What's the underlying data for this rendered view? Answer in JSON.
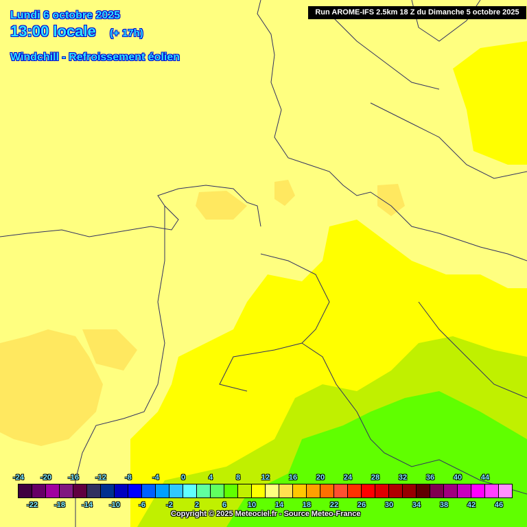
{
  "header": {
    "date": "Lundi 6 octobre 2025",
    "time": "13:00 locale",
    "lead": "(+ 17h)",
    "parameter": "Windchill - Refroissement éolien",
    "run": "Run AROME-IFS 2.5km 18 Z du Dimanche 5 octobre 2025"
  },
  "legend": {
    "top_labels": [
      "-24",
      "-20",
      "-16",
      "-12",
      "-8",
      "-4",
      "0",
      "4",
      "8",
      "12",
      "16",
      "20",
      "24",
      "28",
      "32",
      "36",
      "40",
      "44"
    ],
    "bottom_labels": [
      "-22",
      "-18",
      "-14",
      "-10",
      "-6",
      "-2",
      "2",
      "6",
      "10",
      "14",
      "18",
      "22",
      "26",
      "30",
      "34",
      "38",
      "42",
      "46"
    ],
    "colors": [
      "#3f0040",
      "#660066",
      "#a000a0",
      "#801880",
      "#600040",
      "#303060",
      "#003090",
      "#0000c0",
      "#0000ff",
      "#0060ff",
      "#00a0ff",
      "#30c8ff",
      "#60ffff",
      "#60ffa0",
      "#60ff60",
      "#60ff00",
      "#c0f000",
      "#ffff00",
      "#ffff80",
      "#ffe050",
      "#ffc800",
      "#ffa000",
      "#ff7000",
      "#ff5030",
      "#ff3000",
      "#ff0000",
      "#e00000",
      "#b00000",
      "#980000",
      "#600000",
      "#800050",
      "#a00080",
      "#c800c0",
      "#ff00ff",
      "#ff40ff",
      "#ff90ff"
    ]
  },
  "copyright": "Copyright © 2025 Meteociel.fr - Source Meteo-France"
}
